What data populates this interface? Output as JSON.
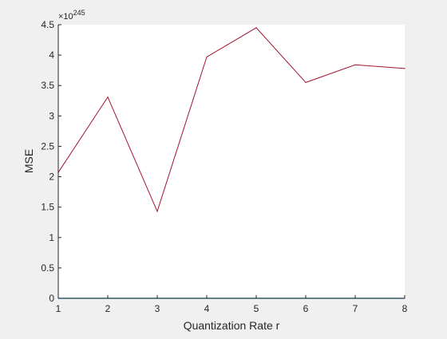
{
  "chart_data": {
    "type": "line",
    "title": "",
    "xlabel": "Quantization Rate r",
    "ylabel": "MSE",
    "xlim": [
      1,
      8
    ],
    "ylim": [
      0,
      4.5
    ],
    "y_exponent_label": "×10",
    "y_exponent_value": "245",
    "xticks": [
      "1",
      "2",
      "3",
      "4",
      "5",
      "6",
      "7",
      "8"
    ],
    "yticks": [
      "0",
      "0.5",
      "1",
      "1.5",
      "2",
      "2.5",
      "3",
      "3.5",
      "4",
      "4.5"
    ],
    "grid": false,
    "series": [
      {
        "color": "#a2142f",
        "x": [
          1,
          2,
          3,
          4,
          5,
          6,
          7,
          8
        ],
        "y": [
          2.07,
          3.31,
          1.43,
          3.97,
          4.45,
          3.55,
          3.84,
          3.78
        ]
      },
      {
        "color": "#4dbeee",
        "x": [
          1,
          2,
          3,
          4,
          5,
          6,
          7,
          8
        ],
        "y": [
          0,
          0,
          0,
          0,
          0,
          0,
          0,
          0
        ]
      }
    ]
  }
}
